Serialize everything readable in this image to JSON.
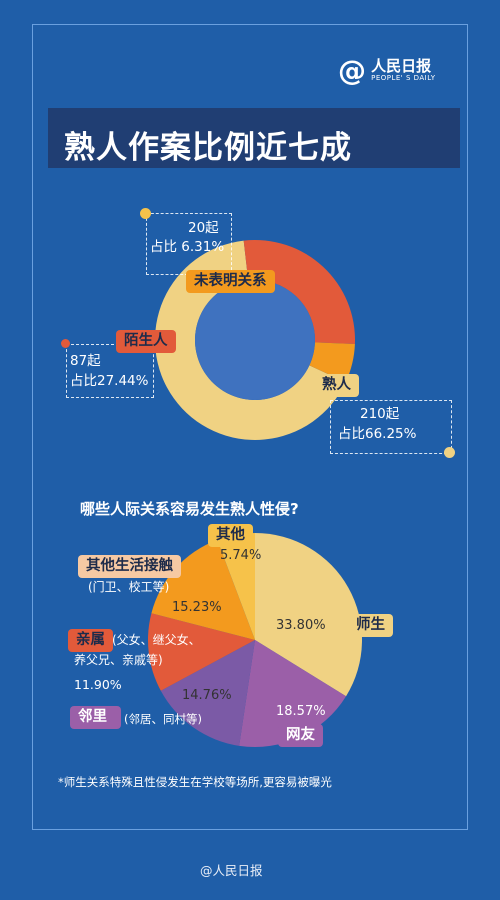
{
  "header": {
    "title": "熟人作案比例近七成"
  },
  "logo": {
    "at": "@",
    "cn": "人民日报",
    "en": "PEOPLE' S DAILY"
  },
  "donut": {
    "unlabeled": {
      "tag": "未表明关系",
      "count": "20起",
      "share": "占比 6.31%",
      "color": "#f39a1e"
    },
    "stranger": {
      "tag": "陌生人",
      "count": "87起",
      "share": "占比27.44%",
      "color": "#e25a3a"
    },
    "acquaintance": {
      "tag": "熟人",
      "count": "210起",
      "share": "占比66.25%",
      "color": "#f0d283"
    }
  },
  "pie": {
    "question": "哪些人际关系容易发生熟人性侵?",
    "teacher": {
      "label": "师生",
      "pct": "33.80%",
      "color": "#f0d283"
    },
    "netfriend": {
      "label": "网友",
      "pct": "18.57%",
      "color": "#9b5fa8"
    },
    "neighbor": {
      "label": "邻里",
      "detail": "(邻居、同村等)",
      "pct": "14.76%",
      "color": "#7b5aa6"
    },
    "family": {
      "label": "亲属",
      "detail1": "(父女、继父女、",
      "detail2": "养父兄、亲戚等)",
      "pct": "11.90%",
      "color": "#e25a3a"
    },
    "life": {
      "label": "其他生活接触",
      "detail": "(门卫、校工等)",
      "pct": "15.23%",
      "color": "#f39a1e"
    },
    "other": {
      "label": "其他",
      "pct": "5.74%",
      "color": "#f6c24a"
    }
  },
  "chart_data": [
    {
      "type": "pie",
      "title": "熟人作案比例近七成",
      "categories": [
        "熟人",
        "陌生人",
        "未表明关系"
      ],
      "values": [
        66.25,
        27.44,
        6.31
      ],
      "counts": [
        210,
        87,
        20
      ],
      "donut": true
    },
    {
      "type": "pie",
      "title": "哪些人际关系容易发生熟人性侵?",
      "categories": [
        "师生",
        "网友",
        "邻里",
        "亲属",
        "其他生活接触",
        "其他"
      ],
      "values": [
        33.8,
        18.57,
        14.76,
        11.9,
        15.23,
        5.74
      ]
    }
  ],
  "note": "*师生关系特殊且性侵发生在学校等场所,更容易被曝光",
  "footer": "@人民日报"
}
